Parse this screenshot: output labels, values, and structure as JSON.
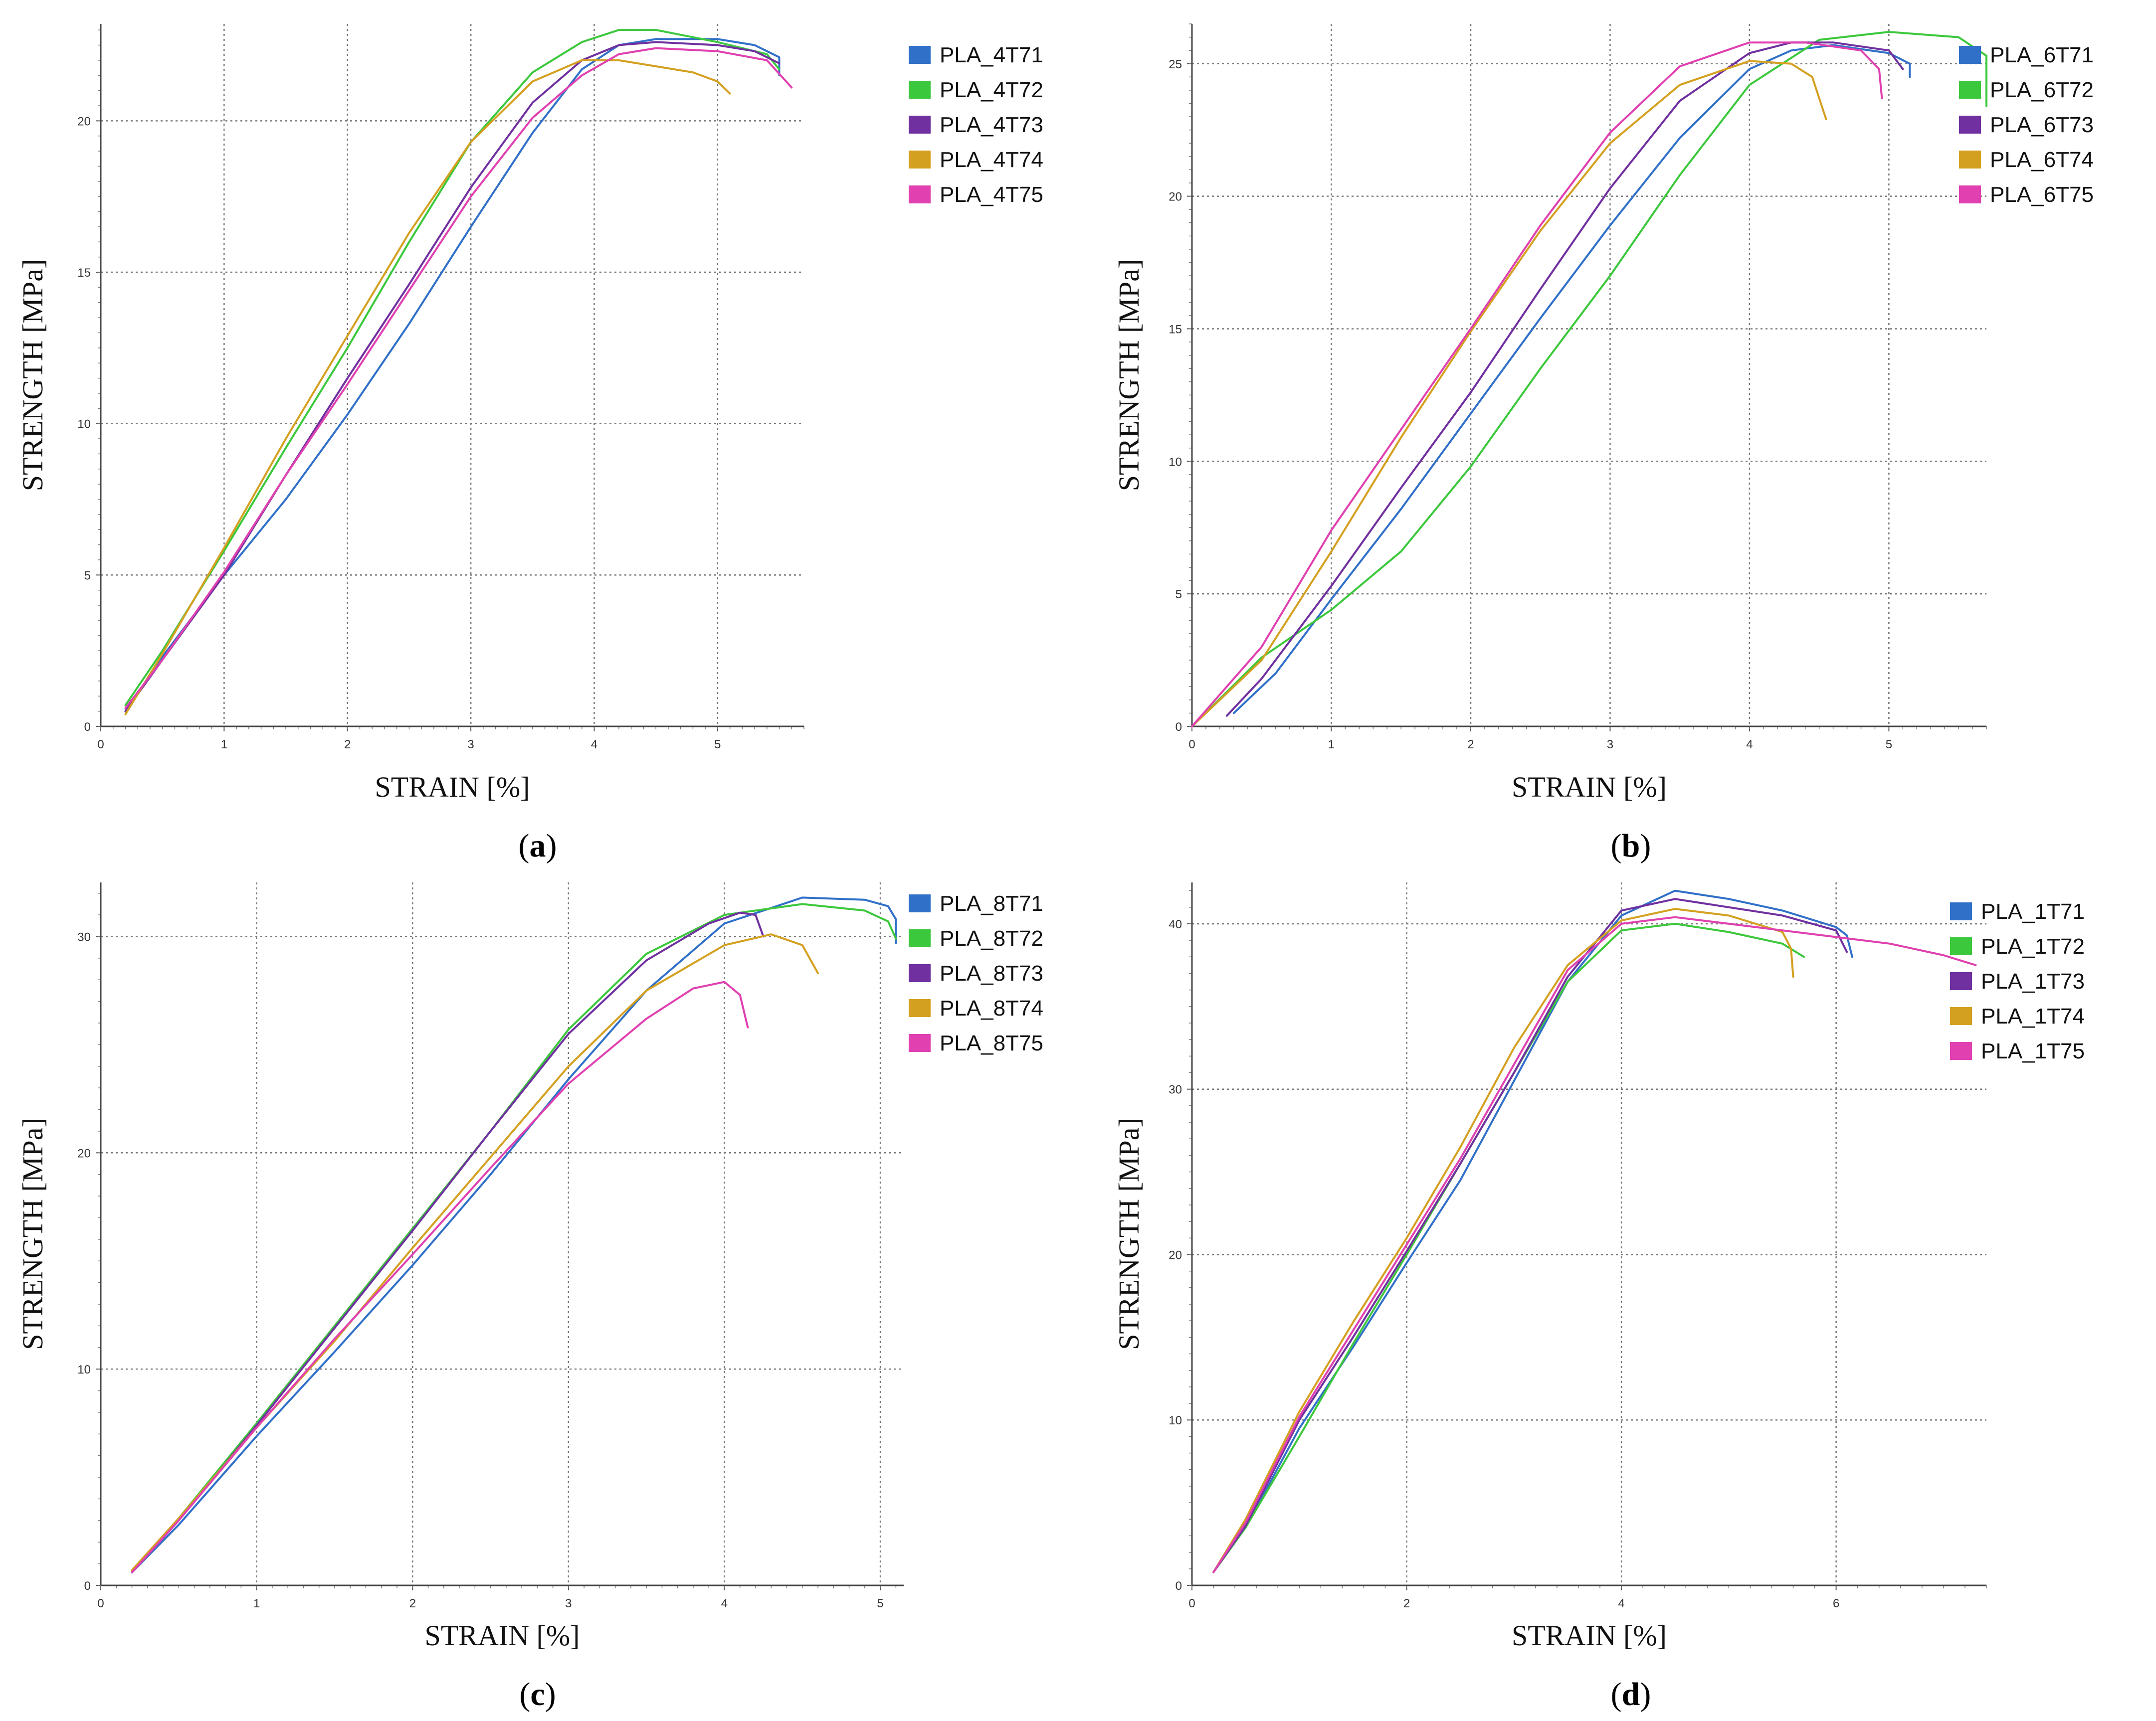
{
  "figure": {
    "panels": [
      "a",
      "b",
      "c",
      "d"
    ]
  },
  "chart_data": [
    {
      "id": "a",
      "caption_letter": "a",
      "type": "line",
      "xlabel": "STRAIN [%]",
      "ylabel": "STRENGTH [MPa]",
      "xlim": [
        0,
        5.7
      ],
      "ylim": [
        0,
        23.2
      ],
      "xticks": [
        0,
        1,
        2,
        3,
        4,
        5
      ],
      "yticks": [
        0,
        5,
        10,
        15,
        20
      ],
      "grid": true,
      "legend_position": "top-right",
      "series": [
        {
          "name": "PLA_4T71",
          "color": "#3070c8",
          "x": [
            0.2,
            0.5,
            1.0,
            1.5,
            2.0,
            2.5,
            3.0,
            3.5,
            3.9,
            4.2,
            4.5,
            5.0,
            5.3,
            5.5,
            5.5
          ],
          "y": [
            0.5,
            2.3,
            5.0,
            7.5,
            10.3,
            13.3,
            16.5,
            19.6,
            21.7,
            22.5,
            22.7,
            22.7,
            22.5,
            22.1,
            21.5
          ]
        },
        {
          "name": "PLA_4T72",
          "color": "#3cc83c",
          "x": [
            0.2,
            0.5,
            1.0,
            1.5,
            2.0,
            2.5,
            3.0,
            3.5,
            3.9,
            4.2,
            4.5,
            5.0,
            5.4,
            5.5
          ],
          "y": [
            0.7,
            2.5,
            5.8,
            9.2,
            12.5,
            16.0,
            19.3,
            21.6,
            22.6,
            23.0,
            23.0,
            22.6,
            22.2,
            21.7
          ]
        },
        {
          "name": "PLA_4T73",
          "color": "#7030a0",
          "x": [
            0.2,
            0.5,
            1.0,
            1.5,
            2.0,
            2.5,
            3.0,
            3.5,
            3.9,
            4.2,
            4.5,
            5.0,
            5.3,
            5.5
          ],
          "y": [
            0.5,
            2.2,
            5.0,
            8.3,
            11.5,
            14.6,
            17.8,
            20.6,
            22.0,
            22.5,
            22.6,
            22.5,
            22.3,
            21.9
          ]
        },
        {
          "name": "PLA_4T74",
          "color": "#d4a020",
          "x": [
            0.2,
            0.5,
            1.0,
            1.5,
            2.0,
            2.5,
            3.0,
            3.5,
            3.9,
            4.2,
            4.5,
            4.8,
            5.0,
            5.1
          ],
          "y": [
            0.4,
            2.4,
            5.9,
            9.5,
            12.9,
            16.3,
            19.3,
            21.3,
            22.0,
            22.0,
            21.8,
            21.6,
            21.3,
            20.9
          ]
        },
        {
          "name": "PLA_4T75",
          "color": "#e040b0",
          "x": [
            0.2,
            0.5,
            1.0,
            1.5,
            2.0,
            2.5,
            3.0,
            3.5,
            3.9,
            4.2,
            4.5,
            5.0,
            5.4,
            5.6
          ],
          "y": [
            0.6,
            2.2,
            5.1,
            8.3,
            11.3,
            14.4,
            17.5,
            20.1,
            21.5,
            22.2,
            22.4,
            22.3,
            22.0,
            21.1
          ]
        }
      ]
    },
    {
      "id": "b",
      "caption_letter": "b",
      "type": "line",
      "xlabel": "STRAIN [%]",
      "ylabel": "STRENGTH [MPa]",
      "xlim": [
        0,
        5.7
      ],
      "ylim": [
        0,
        26.5
      ],
      "xticks": [
        0,
        1,
        2,
        3,
        4,
        5
      ],
      "yticks": [
        0,
        5,
        10,
        15,
        20,
        25
      ],
      "grid": true,
      "legend_position": "top-right",
      "series": [
        {
          "name": "PLA_6T71",
          "color": "#3070c8",
          "x": [
            0.3,
            0.6,
            1.0,
            1.5,
            2.0,
            2.5,
            3.0,
            3.5,
            4.0,
            4.3,
            4.6,
            5.0,
            5.15,
            5.15
          ],
          "y": [
            0.5,
            2.0,
            4.8,
            8.2,
            11.8,
            15.4,
            18.9,
            22.2,
            24.8,
            25.5,
            25.7,
            25.4,
            25.0,
            24.5
          ]
        },
        {
          "name": "PLA_6T72",
          "color": "#3cc83c",
          "x": [
            0.0,
            0.5,
            1.0,
            1.5,
            2.0,
            2.5,
            3.0,
            3.5,
            4.0,
            4.5,
            5.0,
            5.5,
            5.7,
            5.7
          ],
          "y": [
            0.0,
            2.6,
            4.4,
            6.6,
            9.8,
            13.5,
            17.0,
            20.8,
            24.2,
            25.9,
            26.2,
            26.0,
            25.3,
            23.4
          ]
        },
        {
          "name": "PLA_6T73",
          "color": "#7030a0",
          "x": [
            0.25,
            0.5,
            1.0,
            1.5,
            2.0,
            2.5,
            3.0,
            3.5,
            4.0,
            4.3,
            4.6,
            5.0,
            5.1
          ],
          "y": [
            0.4,
            1.8,
            5.3,
            9.0,
            12.6,
            16.5,
            20.3,
            23.6,
            25.4,
            25.8,
            25.8,
            25.5,
            24.8
          ]
        },
        {
          "name": "PLA_6T74",
          "color": "#d4a020",
          "x": [
            0.0,
            0.5,
            1.0,
            1.5,
            2.0,
            2.5,
            3.0,
            3.5,
            4.0,
            4.3,
            4.45,
            4.55
          ],
          "y": [
            0.0,
            2.5,
            6.6,
            10.9,
            14.9,
            18.7,
            22.0,
            24.2,
            25.1,
            25.0,
            24.5,
            22.9
          ]
        },
        {
          "name": "PLA_6T75",
          "color": "#e040b0",
          "x": [
            0.0,
            0.5,
            1.0,
            1.5,
            2.0,
            2.5,
            3.0,
            3.5,
            4.0,
            4.4,
            4.8,
            4.93,
            4.95
          ],
          "y": [
            0.0,
            3.0,
            7.4,
            11.2,
            15.0,
            18.9,
            22.4,
            24.9,
            25.8,
            25.8,
            25.5,
            24.8,
            23.7
          ]
        }
      ]
    },
    {
      "id": "c",
      "caption_letter": "c",
      "type": "line",
      "xlabel": "STRAIN [%]",
      "ylabel": "STRENGTH [MPa]",
      "xlim": [
        0,
        5.15
      ],
      "ylim": [
        0,
        32.5
      ],
      "xticks": [
        0,
        1,
        2,
        3,
        4,
        5
      ],
      "yticks": [
        0,
        10,
        20,
        30
      ],
      "grid": true,
      "legend_position": "top-right",
      "series": [
        {
          "name": "PLA_8T71",
          "color": "#3070c8",
          "x": [
            0.2,
            0.5,
            1.0,
            1.5,
            2.0,
            2.5,
            3.0,
            3.5,
            4.0,
            4.5,
            4.9,
            5.05,
            5.1,
            5.1
          ],
          "y": [
            0.6,
            2.8,
            6.9,
            10.8,
            14.8,
            19.0,
            23.4,
            27.5,
            30.6,
            31.8,
            31.7,
            31.4,
            30.8,
            29.7
          ]
        },
        {
          "name": "PLA_8T72",
          "color": "#3cc83c",
          "x": [
            0.2,
            0.5,
            1.0,
            1.5,
            2.0,
            2.5,
            3.0,
            3.5,
            4.0,
            4.5,
            4.9,
            5.05,
            5.1
          ],
          "y": [
            0.6,
            3.1,
            7.5,
            12.0,
            16.5,
            21.0,
            25.7,
            29.2,
            31.0,
            31.5,
            31.2,
            30.7,
            29.9
          ]
        },
        {
          "name": "PLA_8T73",
          "color": "#7030a0",
          "x": [
            0.2,
            0.5,
            1.0,
            1.5,
            2.0,
            2.5,
            3.0,
            3.5,
            3.9,
            4.1,
            4.2,
            4.25
          ],
          "y": [
            0.6,
            3.0,
            7.4,
            11.9,
            16.4,
            21.0,
            25.5,
            28.9,
            30.6,
            31.1,
            31.0,
            30.0
          ]
        },
        {
          "name": "PLA_8T74",
          "color": "#d4a020",
          "x": [
            0.2,
            0.5,
            1.0,
            1.5,
            2.0,
            2.5,
            3.0,
            3.5,
            4.0,
            4.3,
            4.5,
            4.6
          ],
          "y": [
            0.7,
            3.1,
            7.3,
            11.3,
            15.6,
            19.8,
            24.0,
            27.5,
            29.6,
            30.1,
            29.6,
            28.3
          ]
        },
        {
          "name": "PLA_8T75",
          "color": "#e040b0",
          "x": [
            0.2,
            0.5,
            1.0,
            1.5,
            2.0,
            2.5,
            3.0,
            3.5,
            3.8,
            4.0,
            4.1,
            4.15
          ],
          "y": [
            0.6,
            3.0,
            7.3,
            11.4,
            15.3,
            19.3,
            23.2,
            26.2,
            27.6,
            27.9,
            27.3,
            25.8
          ]
        }
      ]
    },
    {
      "id": "d",
      "caption_letter": "d",
      "type": "line",
      "xlabel": "STRAIN [%]",
      "ylabel": "STRENGTH [MPa]",
      "xlim": [
        0,
        7.4
      ],
      "ylim": [
        0,
        42.5
      ],
      "xticks": [
        0,
        2,
        4,
        6
      ],
      "yticks": [
        0,
        10,
        20,
        30,
        40
      ],
      "grid": true,
      "legend_position": "top-right",
      "series": [
        {
          "name": "PLA_1T71",
          "color": "#3070c8",
          "x": [
            0.2,
            0.5,
            1.0,
            1.5,
            2.0,
            2.5,
            3.0,
            3.5,
            4.0,
            4.5,
            5.0,
            5.5,
            6.0,
            6.1,
            6.15
          ],
          "y": [
            0.8,
            3.5,
            9.5,
            14.4,
            19.5,
            24.5,
            30.5,
            36.5,
            40.5,
            42.0,
            41.5,
            40.8,
            39.8,
            39.3,
            38.0
          ]
        },
        {
          "name": "PLA_1T72",
          "color": "#3cc83c",
          "x": [
            0.2,
            0.5,
            1.0,
            1.5,
            2.0,
            2.5,
            3.0,
            3.5,
            4.0,
            4.5,
            5.0,
            5.5,
            5.7
          ],
          "y": [
            0.8,
            3.5,
            9.0,
            14.6,
            20.0,
            25.5,
            31.0,
            36.5,
            39.6,
            40.0,
            39.5,
            38.8,
            38.0
          ]
        },
        {
          "name": "PLA_1T73",
          "color": "#7030a0",
          "x": [
            0.2,
            0.5,
            1.0,
            1.5,
            2.0,
            2.5,
            3.0,
            3.5,
            4.0,
            4.5,
            5.0,
            5.5,
            6.0,
            6.1
          ],
          "y": [
            0.8,
            3.6,
            10.0,
            15.0,
            20.2,
            25.5,
            31.0,
            36.8,
            40.8,
            41.5,
            41.0,
            40.5,
            39.6,
            38.3
          ]
        },
        {
          "name": "PLA_1T74",
          "color": "#d4a020",
          "x": [
            0.2,
            0.5,
            1.0,
            1.5,
            2.0,
            2.5,
            3.0,
            3.5,
            4.0,
            4.5,
            5.0,
            5.5,
            5.58,
            5.6
          ],
          "y": [
            0.8,
            4.0,
            10.5,
            15.9,
            21.0,
            26.5,
            32.5,
            37.5,
            40.2,
            40.9,
            40.5,
            39.5,
            38.5,
            36.8
          ]
        },
        {
          "name": "PLA_1T75",
          "color": "#e040b0",
          "x": [
            0.2,
            0.5,
            1.0,
            1.5,
            2.0,
            2.5,
            3.0,
            3.5,
            4.0,
            4.5,
            5.0,
            6.0,
            6.5,
            7.0,
            7.3
          ],
          "y": [
            0.8,
            3.8,
            10.2,
            15.4,
            20.6,
            25.8,
            31.5,
            37.2,
            40.0,
            40.4,
            40.0,
            39.2,
            38.8,
            38.1,
            37.5
          ]
        }
      ]
    }
  ]
}
